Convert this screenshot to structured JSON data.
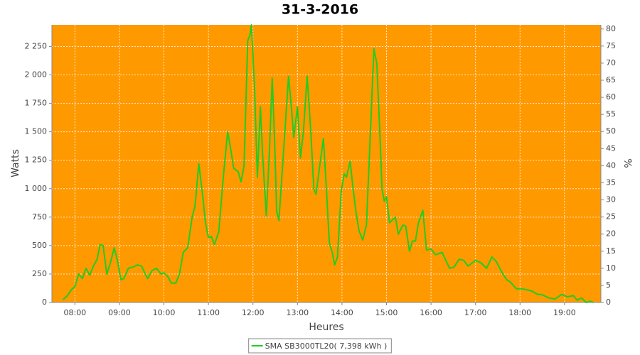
{
  "chart_data": {
    "type": "line",
    "title": "31-3-2016",
    "x_label": "Heures",
    "y_label": "Watts",
    "y2_label": "%",
    "x": [
      "07:44",
      "07:50",
      "07:55",
      "08:00",
      "08:05",
      "08:10",
      "08:15",
      "08:20",
      "08:25",
      "08:30",
      "08:34",
      "08:38",
      "08:43",
      "08:48",
      "08:53",
      "08:58",
      "09:02",
      "09:06",
      "09:12",
      "09:18",
      "09:24",
      "09:30",
      "09:34",
      "09:38",
      "09:44",
      "09:50",
      "09:56",
      "10:00",
      "10:05",
      "10:10",
      "10:16",
      "10:21",
      "10:26",
      "10:32",
      "10:38",
      "10:42",
      "10:47",
      "10:52",
      "10:56",
      "11:00",
      "11:04",
      "11:08",
      "11:14",
      "11:20",
      "11:26",
      "11:30",
      "11:34",
      "11:40",
      "11:44",
      "11:48",
      "11:53",
      "11:56",
      "11:58",
      "12:02",
      "12:06",
      "12:10",
      "12:13",
      "12:18",
      "12:22",
      "12:26",
      "12:29",
      "12:32",
      "12:35",
      "12:40",
      "12:48",
      "12:52",
      "12:55",
      "13:00",
      "13:04",
      "13:08",
      "13:13",
      "13:18",
      "13:22",
      "13:25",
      "13:30",
      "13:35",
      "13:39",
      "13:43",
      "13:47",
      "13:50",
      "13:54",
      "13:59",
      "14:03",
      "14:06",
      "14:11",
      "14:15",
      "14:19",
      "14:23",
      "14:28",
      "14:33",
      "14:38",
      "14:43",
      "14:47",
      "14:51",
      "14:54",
      "14:57",
      "15:00",
      "15:04",
      "15:12",
      "15:16",
      "15:22",
      "15:26",
      "15:31",
      "15:35",
      "15:39",
      "15:43",
      "15:49",
      "15:54",
      "16:00",
      "16:06",
      "16:15",
      "16:25",
      "16:31",
      "16:38",
      "16:44",
      "16:50",
      "17:00",
      "17:07",
      "17:15",
      "17:22",
      "17:28",
      "17:36",
      "17:42",
      "17:47",
      "17:55",
      "18:03",
      "18:10",
      "18:16",
      "18:24",
      "18:29",
      "18:39",
      "18:47",
      "18:56",
      "19:04",
      "19:12",
      "19:17",
      "19:23",
      "19:29",
      "19:35",
      "19:39"
    ],
    "series": [
      {
        "name": "SMA SB3000TL20( 7,398 kWh )",
        "color": "#22cc22",
        "values": [
          25,
          60,
          110,
          140,
          250,
          210,
          300,
          240,
          320,
          380,
          510,
          500,
          250,
          350,
          480,
          350,
          200,
          210,
          300,
          310,
          330,
          320,
          260,
          210,
          280,
          300,
          250,
          260,
          230,
          170,
          170,
          250,
          440,
          480,
          750,
          850,
          1220,
          950,
          700,
          570,
          580,
          510,
          620,
          1100,
          1500,
          1350,
          1180,
          1150,
          1060,
          1200,
          2300,
          2350,
          2440,
          1900,
          1100,
          1720,
          1300,
          760,
          1300,
          1970,
          1450,
          800,
          720,
          1200,
          1990,
          1700,
          1450,
          1720,
          1270,
          1500,
          1990,
          1500,
          1000,
          950,
          1200,
          1440,
          1000,
          520,
          440,
          330,
          400,
          980,
          1130,
          1100,
          1240,
          1000,
          790,
          630,
          550,
          680,
          1450,
          2230,
          2100,
          1500,
          1000,
          890,
          930,
          700,
          750,
          600,
          680,
          670,
          450,
          540,
          540,
          700,
          810,
          460,
          470,
          420,
          440,
          300,
          310,
          380,
          370,
          320,
          370,
          350,
          300,
          400,
          360,
          260,
          200,
          180,
          120,
          120,
          110,
          100,
          70,
          70,
          40,
          30,
          70,
          50,
          60,
          20,
          40,
          0,
          10,
          0
        ]
      }
    ],
    "xlim": [
      "07:29",
      "19:49"
    ],
    "xticks": [
      "08:00",
      "09:00",
      "10:00",
      "11:00",
      "12:00",
      "13:00",
      "14:00",
      "15:00",
      "16:00",
      "17:00",
      "18:00",
      "19:00"
    ],
    "ylim": [
      0,
      2440
    ],
    "yticks": [
      0,
      250,
      500,
      750,
      {
        "value": 1000,
        "label": "1 000"
      },
      {
        "value": 1250,
        "label": "1 250"
      },
      {
        "value": 1500,
        "label": "1 500"
      },
      {
        "value": 1750,
        "label": "1 750"
      },
      {
        "value": 2000,
        "label": "2 000"
      },
      {
        "value": 2250,
        "label": "2 250"
      }
    ],
    "y2lim": [
      0,
      81.2
    ],
    "y2ticks": [
      0,
      5,
      10,
      15,
      20,
      25,
      30,
      35,
      40,
      45,
      50,
      55,
      60,
      65,
      70,
      75,
      80
    ],
    "grid": true,
    "plot_background": "#ff9900",
    "legend": "bottom"
  }
}
